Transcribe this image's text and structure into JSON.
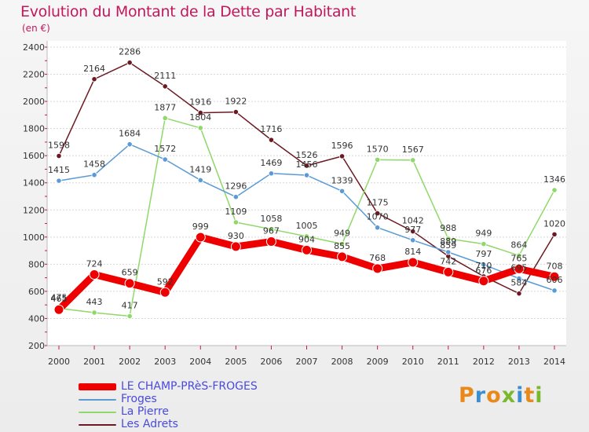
{
  "header": {
    "title": "Evolution du Montant de la Dette par Habitant",
    "subtitle": "(en €)"
  },
  "logo": {
    "text": "Proxiti",
    "colors": [
      "#e8891a",
      "#3b8fd0",
      "#e8891a",
      "#7ab82e",
      "#3b8fd0",
      "#e8891a",
      "#7ab82e"
    ]
  },
  "chart_data": {
    "type": "line",
    "title": "Evolution du Montant de la Dette par Habitant",
    "ylabel": "(en €)",
    "xlabel": "",
    "ylim": [
      200,
      2400
    ],
    "yticks": [
      200,
      400,
      600,
      800,
      1000,
      1200,
      1400,
      1600,
      1800,
      2000,
      2200,
      2400
    ],
    "grid": true,
    "legend_position": "bottom-left",
    "x": [
      "2000",
      "2001",
      "2002",
      "2003",
      "2004",
      "2005",
      "2006",
      "2007",
      "2008",
      "2009",
      "2010",
      "2011",
      "2012",
      "2013",
      "2014"
    ],
    "series": [
      {
        "name": "LE CHAMP-PRèS-FROGES",
        "color": "#ee0000",
        "values": [
          465,
          724,
          659,
          592,
          999,
          930,
          967,
          904,
          855,
          768,
          814,
          742,
          676,
          765,
          708
        ]
      },
      {
        "name": "Froges",
        "color": "#5a9bd5",
        "values": [
          1415,
          1458,
          1684,
          1572,
          1419,
          1296,
          1469,
          1456,
          1339,
          1070,
          977,
          889,
          797,
          695,
          606
        ]
      },
      {
        "name": "La Pierre",
        "color": "#8fd86a",
        "values": [
          475,
          443,
          417,
          1877,
          1804,
          1109,
          1058,
          1005,
          949,
          1570,
          1567,
          988,
          949,
          864,
          1346
        ]
      },
      {
        "name": "Les Adrets",
        "color": "#6b1a22",
        "values": [
          1598,
          2164,
          2286,
          2111,
          1916,
          1922,
          1716,
          1526,
          1596,
          1175,
          1042,
          859,
          710,
          584,
          1020
        ]
      }
    ]
  }
}
